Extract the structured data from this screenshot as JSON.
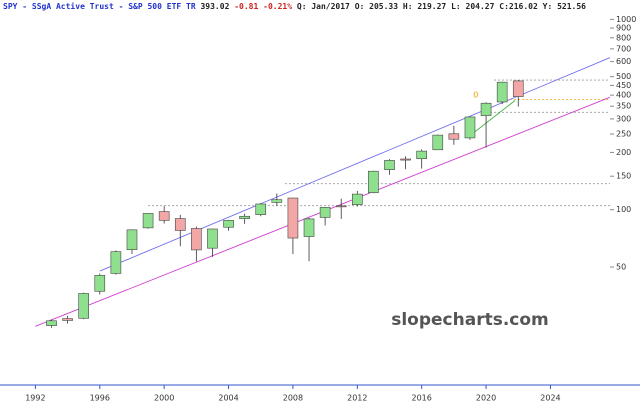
{
  "chart_data": {
    "type": "candlestick",
    "title": "SPY - SSgA Active Trust - S&P 500 ETF TR",
    "quote": {
      "last": "393.02",
      "change": "-0.81",
      "change_pct": "-0.21%",
      "period": "Q: Jan/2017",
      "open": "O: 205.33",
      "high": "H: 219.27",
      "low": "L: 204.27",
      "close_label": "C:",
      "close": "216.02",
      "extra": "Y: 521.56"
    },
    "watermark": "slopecharts.com",
    "log_scale": true,
    "up_color": "#8ee08e",
    "down_color": "#f2a6a6",
    "x": [
      1993,
      1994,
      1995,
      1996,
      1997,
      1998,
      1999,
      2000,
      2001,
      2002,
      2003,
      2004,
      2005,
      2006,
      2007,
      2008,
      2009,
      2010,
      2011,
      2012,
      2013,
      2014,
      2015,
      2016,
      2017,
      2018,
      2019,
      2020,
      2021,
      2022
    ],
    "open": [
      24.6,
      26.8,
      26.9,
      37.3,
      46.3,
      61.7,
      80.3,
      97.8,
      89.9,
      79.7,
      62.8,
      80.9,
      89.7,
      94.2,
      109.3,
      115.2,
      72.3,
      91.1,
      104.8,
      106.4,
      122.9,
      162.4,
      184.7,
      185.3,
      206.5,
      250.6,
      238.4,
      312.2,
      368.3,
      475.0
    ],
    "high": [
      26.5,
      27.7,
      36.7,
      46.2,
      61.1,
      78.9,
      96.0,
      104.4,
      94.0,
      81.5,
      79.5,
      88.5,
      95.3,
      108.3,
      121.6,
      115.2,
      90.7,
      103.2,
      114.3,
      125.6,
      159.9,
      184.4,
      191.1,
      207.5,
      248.2,
      276.0,
      308.9,
      367.1,
      470.4,
      480.0
    ],
    "low": [
      24.0,
      25.2,
      26.6,
      35.9,
      45.6,
      58.5,
      79.4,
      84.6,
      64.3,
      53.5,
      56.5,
      77.5,
      84.3,
      92.4,
      104.9,
      58.5,
      53.6,
      82.7,
      89.5,
      104.0,
      122.0,
      152.7,
      163.1,
      164.5,
      205.8,
      219.5,
      233.0,
      211.8,
      359.3,
      348.1
    ],
    "close": [
      26.1,
      26.2,
      36.3,
      45.2,
      60.2,
      78.4,
      95.6,
      87.9,
      77.8,
      61.5,
      79.2,
      87.9,
      92.4,
      107.2,
      112.9,
      71.0,
      89.5,
      102.9,
      104.5,
      120.8,
      159.4,
      181.6,
      182.3,
      203.2,
      246.6,
      234.7,
      307.1,
      362.7,
      467.8,
      393.0
    ],
    "xlim": [
      1989.8,
      2027.7
    ],
    "xticks": [
      1992,
      1996,
      2000,
      2004,
      2008,
      2012,
      2016,
      2020,
      2024
    ],
    "ylim": [
      12,
      1190
    ],
    "yticks": [
      50,
      100,
      150,
      200,
      250,
      300,
      350,
      400,
      450,
      500,
      600,
      700,
      800,
      900,
      1000
    ],
    "trendlines": [
      {
        "color": "#7070f0",
        "points": [
          [
            1996.0,
            47.6
          ],
          [
            2029.6,
            735
          ]
        ]
      },
      {
        "color": "#d040d0",
        "points": [
          [
            1992.0,
            24.4
          ],
          [
            2029.6,
            452
          ]
        ]
      },
      {
        "color": "#40b040",
        "points": [
          [
            2019.0,
            245
          ],
          [
            2021.8,
            375
          ]
        ]
      }
    ],
    "hlines": [
      {
        "value": 480,
        "from": 2020.5,
        "color": "#999999"
      },
      {
        "value": 380,
        "from": 2021.5,
        "color": "#f0a000"
      },
      {
        "value": 325,
        "from": 2020.0,
        "color": "#999999"
      },
      {
        "value": 137,
        "from": 2007.5,
        "color": "#999999"
      },
      {
        "value": 105,
        "from": 1999.0,
        "color": "#999999"
      }
    ],
    "annotations": [
      {
        "text": "0",
        "x": 2019.2,
        "y": 400,
        "color": "#f0a000"
      }
    ]
  }
}
